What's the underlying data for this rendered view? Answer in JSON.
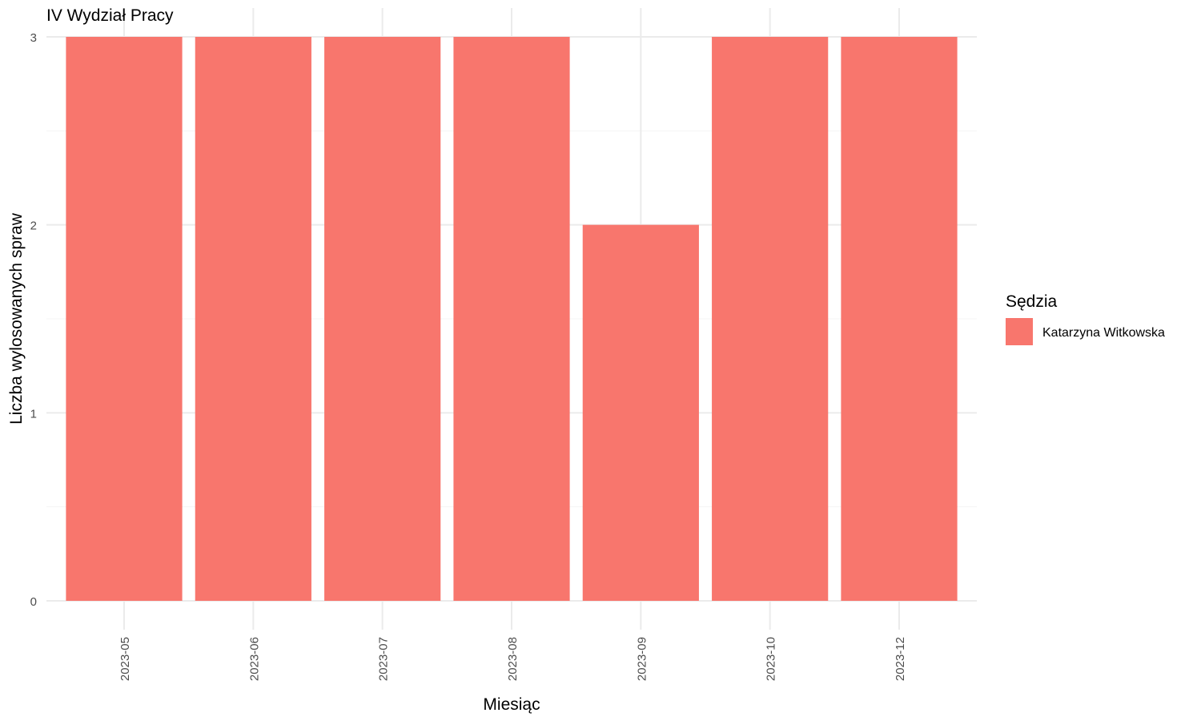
{
  "chart_data": {
    "type": "bar",
    "title": "IV Wydział Pracy",
    "xlabel": "Miesiąc",
    "ylabel": "Liczba wylosowanych spraw",
    "categories": [
      "2023-05",
      "2023-06",
      "2023-07",
      "2023-08",
      "2023-09",
      "2023-10",
      "2023-12"
    ],
    "series": [
      {
        "name": "Katarzyna Witkowska",
        "values": [
          3,
          3,
          3,
          3,
          2,
          3,
          3
        ],
        "color": "#f8766d"
      }
    ],
    "ylim": [
      0,
      3
    ],
    "yticks": [
      0,
      1,
      2,
      3
    ],
    "grid": true,
    "legend": {
      "title": "Sędzia",
      "position": "right"
    }
  }
}
